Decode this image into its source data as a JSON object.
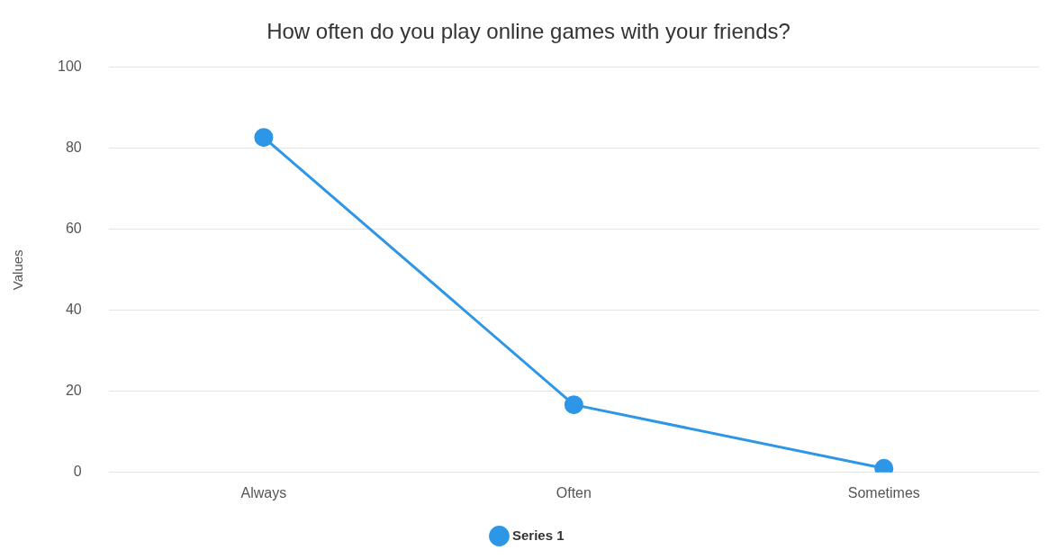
{
  "chart_data": {
    "type": "line",
    "title": "How often do you play online games with your friends?",
    "ylabel": "Values",
    "categories": [
      "Always",
      "Often",
      "Sometimes"
    ],
    "series": [
      {
        "name": "Series 1",
        "color": "#2e96e6",
        "values": [
          82.7,
          16.7,
          1
        ]
      }
    ],
    "ylim": [
      0,
      100
    ],
    "yticks": [
      0,
      20,
      40,
      60,
      80,
      100
    ],
    "grid": "y",
    "legend": "bottom",
    "marker": "circle",
    "line_style": "solid"
  }
}
